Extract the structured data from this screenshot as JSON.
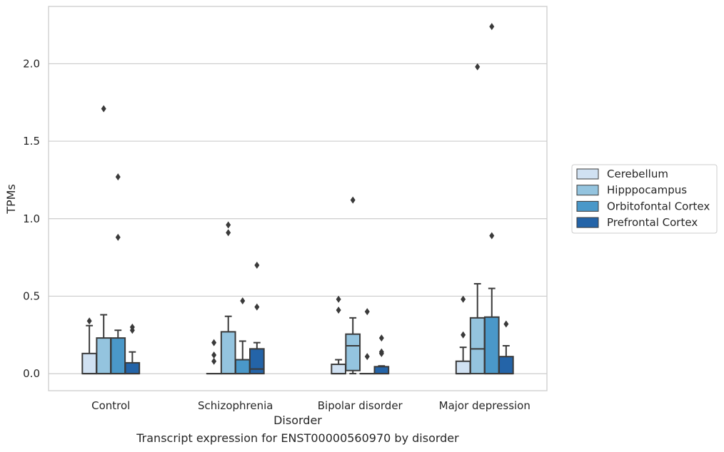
{
  "caption": "Transcript expression for ENST00000560970 by disorder",
  "chart_data": {
    "type": "boxplot",
    "xlabel": "Disorder",
    "ylabel": "TPMs",
    "ylim": [
      -0.11,
      2.37
    ],
    "yticks": [
      0.0,
      0.5,
      1.0,
      1.5,
      2.0
    ],
    "ytick_labels": [
      "0.0",
      "0.5",
      "1.0",
      "1.5",
      "2.0"
    ],
    "grid": "horizontal",
    "legend_position": "right",
    "categories": [
      "Control",
      "Schizophrenia",
      "Bipolar disorder",
      "Major depression"
    ],
    "series": [
      {
        "name": "Cerebellum",
        "color": "#d0e1f2",
        "boxes": [
          {
            "q1": 0.0,
            "median": 0.0,
            "q3": 0.13,
            "whislo": 0.0,
            "whishi": 0.31,
            "fliers": [
              0.34
            ]
          },
          {
            "q1": 0.0,
            "median": 0.0,
            "q3": 0.0,
            "whislo": 0.0,
            "whishi": 0.0,
            "fliers": [
              0.08,
              0.12,
              0.2
            ]
          },
          {
            "q1": 0.0,
            "median": 0.0,
            "q3": 0.06,
            "whislo": 0.0,
            "whishi": 0.09,
            "fliers": [
              0.41,
              0.48
            ]
          },
          {
            "q1": 0.0,
            "median": 0.0,
            "q3": 0.08,
            "whislo": 0.0,
            "whishi": 0.17,
            "fliers": [
              0.25,
              0.48
            ]
          }
        ]
      },
      {
        "name": "Hipppocampus",
        "color": "#94c4df",
        "boxes": [
          {
            "q1": 0.0,
            "median": 0.0,
            "q3": 0.23,
            "whislo": 0.0,
            "whishi": 0.38,
            "fliers": [
              1.71
            ]
          },
          {
            "q1": 0.0,
            "median": 0.0,
            "q3": 0.27,
            "whislo": 0.0,
            "whishi": 0.37,
            "fliers": [
              0.91,
              0.96
            ]
          },
          {
            "q1": 0.02,
            "median": 0.18,
            "q3": 0.255,
            "whislo": 0.0,
            "whishi": 0.36,
            "fliers": [
              1.12
            ]
          },
          {
            "q1": 0.0,
            "median": 0.16,
            "q3": 0.36,
            "whislo": 0.0,
            "whishi": 0.58,
            "fliers": [
              1.98
            ]
          }
        ]
      },
      {
        "name": "Orbitofontal Cortex",
        "color": "#4a98c9",
        "boxes": [
          {
            "q1": 0.0,
            "median": 0.0,
            "q3": 0.23,
            "whislo": 0.0,
            "whishi": 0.28,
            "fliers": [
              0.88,
              1.27
            ]
          },
          {
            "q1": 0.0,
            "median": 0.0,
            "q3": 0.09,
            "whislo": 0.0,
            "whishi": 0.21,
            "fliers": [
              0.47
            ]
          },
          {
            "q1": 0.0,
            "median": 0.0,
            "q3": 0.0,
            "whislo": 0.0,
            "whishi": 0.0,
            "fliers": [
              0.11,
              0.4
            ]
          },
          {
            "q1": 0.0,
            "median": 0.0,
            "q3": 0.365,
            "whislo": 0.0,
            "whishi": 0.55,
            "fliers": [
              0.89,
              2.24
            ]
          }
        ]
      },
      {
        "name": "Prefrontal Cortex",
        "color": "#2464a8",
        "boxes": [
          {
            "q1": 0.0,
            "median": 0.0,
            "q3": 0.07,
            "whislo": 0.0,
            "whishi": 0.14,
            "fliers": [
              0.28,
              0.3
            ]
          },
          {
            "q1": 0.0,
            "median": 0.03,
            "q3": 0.16,
            "whislo": 0.0,
            "whishi": 0.2,
            "fliers": [
              0.43,
              0.7
            ]
          },
          {
            "q1": 0.0,
            "median": 0.0,
            "q3": 0.045,
            "whislo": 0.0,
            "whishi": 0.05,
            "fliers": [
              0.13,
              0.14,
              0.23
            ]
          },
          {
            "q1": 0.0,
            "median": 0.0,
            "q3": 0.11,
            "whislo": 0.0,
            "whishi": 0.18,
            "fliers": [
              0.32
            ]
          }
        ]
      }
    ]
  }
}
